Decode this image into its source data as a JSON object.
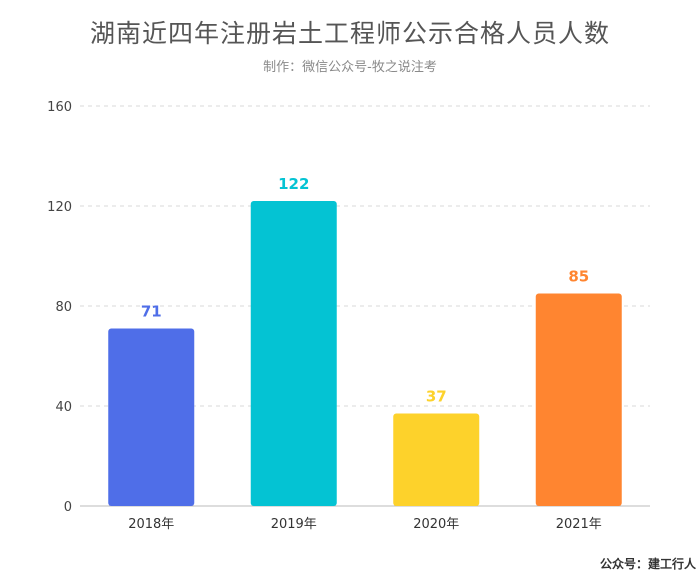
{
  "header": {
    "title": "湖南近四年注册岩土工程师公示合格人员人数",
    "subtitle": "制作：微信公众号-牧之说注考"
  },
  "footer": {
    "text": "公众号：建工行人"
  },
  "chart_data": {
    "type": "bar",
    "categories": [
      "2018年",
      "2019年",
      "2020年",
      "2021年"
    ],
    "values": [
      71,
      122,
      37,
      85
    ],
    "colors": [
      "#4f6ee8",
      "#04c3d3",
      "#fdd22b",
      "#ff8530"
    ],
    "ylim": [
      0,
      160
    ],
    "yticks": [
      0,
      40,
      80,
      120,
      160
    ],
    "grid": true,
    "data_labels": true,
    "xlabel": "",
    "ylabel": ""
  }
}
